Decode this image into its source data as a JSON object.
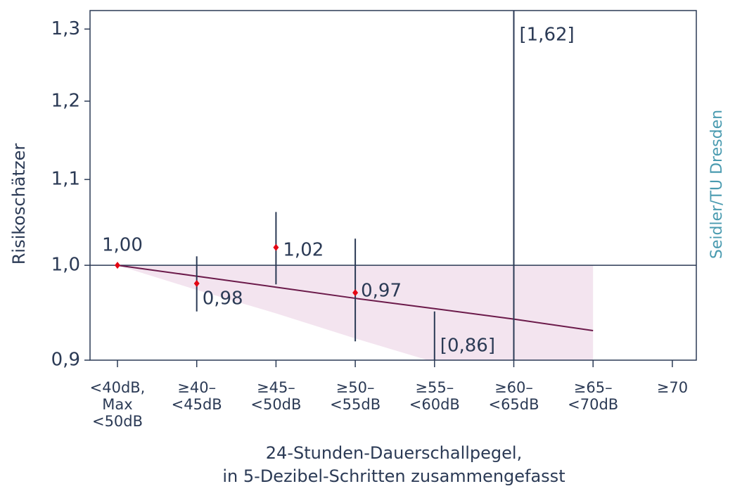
{
  "chart_data": {
    "type": "errorbar",
    "ylabel": "Risikoschätzer",
    "xlabel": [
      "24-Stunden-Dauerschallpegel,",
      "in 5-Dezibel-Schritten zusammengefasst"
    ],
    "source": "Seidler/TU Dresden",
    "categories": [
      [
        "<40dB,",
        "Max",
        "<50dB"
      ],
      [
        "≥40–",
        "<45dB"
      ],
      [
        "≥45–",
        "<50dB"
      ],
      [
        "≥50–",
        "<55dB"
      ],
      [
        "≥55–",
        "<60dB"
      ],
      [
        "≥60–",
        "<65dB"
      ],
      [
        "≥65–",
        "<70dB"
      ],
      [
        "≥70"
      ]
    ],
    "values": [
      1.0,
      0.98,
      1.02,
      0.97,
      null,
      null,
      null,
      null
    ],
    "value_labels": [
      "1,00",
      "0,98",
      "1,02",
      "0,97",
      null,
      null,
      null,
      null
    ],
    "ci_low": [
      null,
      0.95,
      0.979,
      0.919,
      0.86,
      null,
      null,
      null
    ],
    "ci_high": [
      null,
      1.01,
      1.061,
      1.03,
      0.95,
      1.62,
      null,
      null
    ],
    "ci_low_labels": [
      null,
      null,
      null,
      null,
      "[0,86]",
      null,
      null,
      null
    ],
    "ci_high_labels": [
      null,
      null,
      null,
      null,
      null,
      "[1,62]",
      null,
      null
    ],
    "trend": [
      1.0,
      0.988,
      0.976,
      0.964,
      0.953,
      0.942,
      0.93,
      null
    ],
    "band_upper": [
      1.0,
      1.0,
      1.0,
      1.0,
      1.0,
      1.0,
      1.0,
      null
    ],
    "band_lower": [
      1.0,
      0.973,
      0.948,
      0.922,
      0.898,
      0.874,
      0.851,
      null
    ],
    "reference_line": 1.0,
    "log_scale": true,
    "ylim": [
      0.9,
      1.327
    ],
    "yticks": [
      {
        "value": 0.9,
        "label": "0,9"
      },
      {
        "value": 1.0,
        "label": "1,0"
      },
      {
        "value": 1.1,
        "label": "1,1"
      },
      {
        "value": 1.2,
        "label": "1,2"
      },
      {
        "value": 1.3,
        "label": "1,3"
      }
    ],
    "point_color": "#e30613",
    "trend_color": "#6b1a4a",
    "band_color": "#f3e4ef",
    "axis_color": "#2b3a55",
    "source_color": "#4a9bb0"
  }
}
